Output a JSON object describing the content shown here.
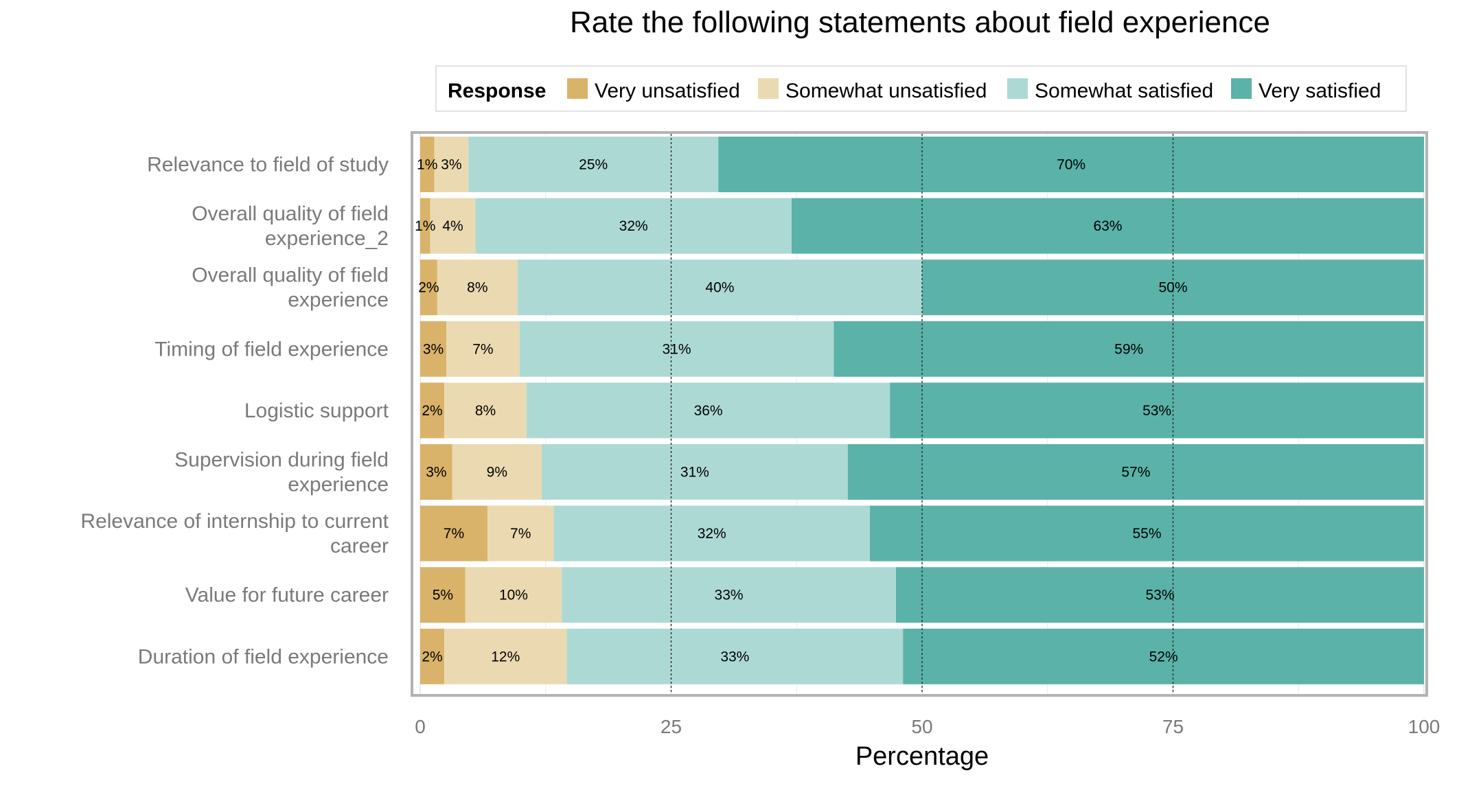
{
  "chart_data": {
    "type": "bar",
    "orientation": "horizontal",
    "stacked": true,
    "title": "Rate the following statements about field experience",
    "xlabel": "Percentage",
    "ylabel": "",
    "xlim": [
      0,
      100
    ],
    "xticks": [
      0,
      25,
      50,
      75,
      100
    ],
    "grid": true,
    "legend": {
      "title": "Response",
      "position": "top"
    },
    "categories": [
      "Relevance to field of study",
      "Overall quality of field experience_2",
      "Overall quality of field experience",
      "Timing of field experience",
      "Logistic support",
      "Supervision during field experience",
      "Relevance of internship to current career",
      "Value for future career",
      "Duration of field experience"
    ],
    "series": [
      {
        "name": "Very unsatisfied",
        "color": "#d9b36a",
        "values": [
          1.4,
          1.0,
          1.7,
          2.6,
          2.4,
          3.2,
          6.7,
          4.5,
          2.4
        ],
        "labels": [
          "1%",
          "1%",
          "2%",
          "3%",
          "2%",
          "3%",
          "7%",
          "5%",
          "2%"
        ]
      },
      {
        "name": "Somewhat unsatisfied",
        "color": "#ebdab1",
        "values": [
          3.4,
          4.5,
          8.0,
          7.3,
          8.2,
          8.9,
          6.6,
          9.6,
          12.2
        ],
        "labels": [
          "3%",
          "4%",
          "8%",
          "7%",
          "8%",
          "9%",
          "7%",
          "10%",
          "12%"
        ]
      },
      {
        "name": "Somewhat satisfied",
        "color": "#add9d4",
        "values": [
          24.9,
          31.5,
          40.3,
          31.3,
          36.2,
          30.5,
          31.5,
          33.3,
          33.5
        ],
        "labels": [
          "25%",
          "32%",
          "40%",
          "31%",
          "36%",
          "31%",
          "32%",
          "33%",
          "33%"
        ]
      },
      {
        "name": "Very satisfied",
        "color": "#5ab2a8",
        "values": [
          70.3,
          63.0,
          50.0,
          58.8,
          53.2,
          57.4,
          55.2,
          52.6,
          51.9
        ],
        "labels": [
          "70%",
          "63%",
          "50%",
          "59%",
          "53%",
          "57%",
          "55%",
          "53%",
          "52%"
        ]
      }
    ]
  }
}
